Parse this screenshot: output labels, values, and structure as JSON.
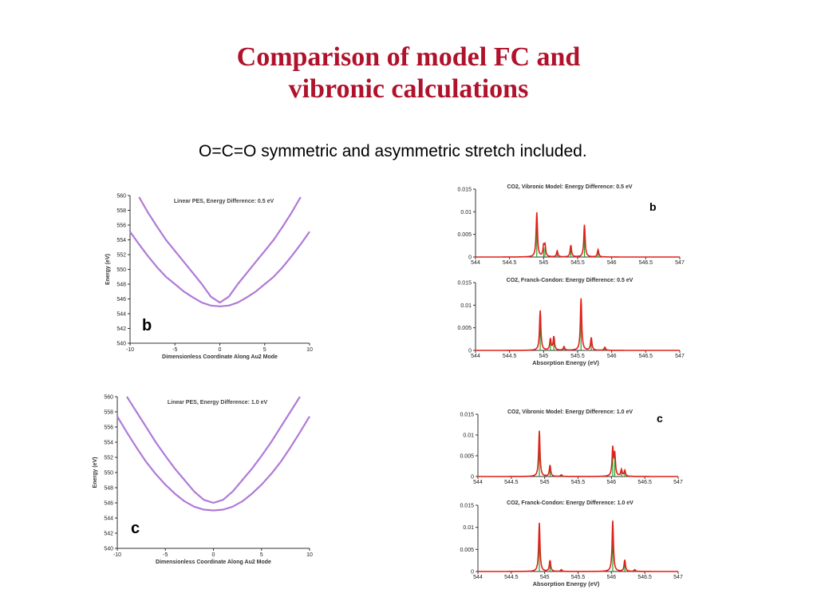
{
  "slide": {
    "title_line1": "Comparison of model FC and",
    "title_line2": "vibronic calculations",
    "subtitle": "O=C=O symmetric and asymmetric stretch included."
  },
  "colors": {
    "title": "#b0122c",
    "pes_curve": "#b07ad8",
    "spectrum_envelope": "#e0201a",
    "spectrum_sticks": "#22a022"
  },
  "chart_data": [
    {
      "id": "pes_b",
      "type": "line",
      "title": "Linear PES, Energy Difference: 0.5 eV",
      "xlabel": "Dimensionless Coordinate Along Au2 Mode",
      "ylabel": "Energy (eV)",
      "panel_label": "b",
      "xlim": [
        -10,
        10
      ],
      "ylim": [
        540,
        560
      ],
      "xticks": [
        -10,
        -5,
        0,
        5,
        10
      ],
      "yticks": [
        540,
        542,
        544,
        546,
        548,
        550,
        552,
        554,
        556,
        558,
        560
      ],
      "series": [
        {
          "x": [
            -9,
            -8,
            -7,
            -6,
            -5,
            -4,
            -3,
            -2,
            -1,
            0,
            1,
            2,
            3,
            4,
            5,
            6,
            7,
            8,
            9
          ],
          "values": [
            559.8,
            557.7,
            555.8,
            554.0,
            552.5,
            551.0,
            549.5,
            548.0,
            546.3,
            545.5,
            546.3,
            548.0,
            549.5,
            551.0,
            552.5,
            554.0,
            555.8,
            557.7,
            559.8
          ]
        },
        {
          "x": [
            -10,
            -9,
            -8,
            -7,
            -6,
            -5,
            -4,
            -3,
            -2,
            -1,
            0,
            1,
            2,
            3,
            4,
            5,
            6,
            7,
            8,
            9,
            10
          ],
          "values": [
            555.1,
            553.4,
            551.8,
            550.3,
            549.0,
            548.0,
            547.0,
            546.2,
            545.5,
            545.1,
            545.0,
            545.1,
            545.5,
            546.2,
            547.0,
            548.0,
            549.0,
            550.3,
            551.8,
            553.4,
            555.1
          ]
        }
      ]
    },
    {
      "id": "pes_c",
      "type": "line",
      "title": "Linear PES, Energy Difference: 1.0 eV",
      "xlabel": "Dimensionless Coordinate Along Au2 Mode",
      "ylabel": "Energy (eV)",
      "panel_label": "c",
      "xlim": [
        -10,
        10
      ],
      "ylim": [
        540,
        560
      ],
      "xticks": [
        -10,
        -5,
        0,
        5,
        10
      ],
      "yticks": [
        540,
        542,
        544,
        546,
        548,
        550,
        552,
        554,
        556,
        558,
        560
      ],
      "series": [
        {
          "x": [
            -9,
            -8,
            -7,
            -6,
            -5,
            -4,
            -3,
            -2,
            -1,
            0,
            1,
            2,
            3,
            4,
            5,
            6,
            7,
            8,
            9
          ],
          "values": [
            560.0,
            558.0,
            556.0,
            554.0,
            552.2,
            550.5,
            549.0,
            547.5,
            546.4,
            546.0,
            546.4,
            547.5,
            549.0,
            550.5,
            552.2,
            554.0,
            556.0,
            558.0,
            560.0
          ]
        },
        {
          "x": [
            -10,
            -9,
            -8,
            -7,
            -6,
            -5,
            -4,
            -3,
            -2,
            -1,
            0,
            1,
            2,
            3,
            4,
            5,
            6,
            7,
            8,
            9,
            10
          ],
          "values": [
            557.4,
            555.3,
            553.3,
            551.4,
            549.8,
            548.4,
            547.2,
            546.2,
            545.5,
            545.1,
            545.0,
            545.1,
            545.5,
            546.2,
            547.2,
            548.4,
            549.8,
            551.4,
            553.3,
            555.3,
            557.4
          ]
        }
      ]
    },
    {
      "id": "spec_vib_b",
      "type": "line",
      "title": "CO2, Vibronic Model: Energy Difference: 0.5 eV",
      "xlabel": "",
      "panel_label": "b",
      "xlim": [
        544,
        547
      ],
      "ylim": [
        0,
        0.015
      ],
      "xticks": [
        "544",
        "544.5",
        "545",
        "545.5",
        "546",
        "546.5",
        "547"
      ],
      "yticks": [
        "0",
        "0.005",
        "0.01",
        "0.015"
      ],
      "peaks": [
        {
          "x": 544.9,
          "y": 0.0098
        },
        {
          "x": 545.0,
          "y": 0.0022
        },
        {
          "x": 545.02,
          "y": 0.0024
        },
        {
          "x": 545.2,
          "y": 0.0013
        },
        {
          "x": 545.4,
          "y": 0.0026
        },
        {
          "x": 545.6,
          "y": 0.0071
        },
        {
          "x": 545.8,
          "y": 0.0016
        }
      ]
    },
    {
      "id": "spec_fc_b",
      "type": "line",
      "title": "CO2, Franck-Condon: Energy Difference: 0.5 eV",
      "xlabel": "Absorption Energy (eV)",
      "panel_label": "",
      "xlim": [
        544,
        547
      ],
      "ylim": [
        0,
        0.015
      ],
      "xticks": [
        "544",
        "544.5",
        "545",
        "545.5",
        "546",
        "546.5",
        "547"
      ],
      "yticks": [
        "0",
        "0.005",
        "0.01",
        "0.015"
      ],
      "peaks": [
        {
          "x": 544.95,
          "y": 0.0088
        },
        {
          "x": 545.1,
          "y": 0.0025
        },
        {
          "x": 545.15,
          "y": 0.003
        },
        {
          "x": 545.3,
          "y": 0.0008
        },
        {
          "x": 545.55,
          "y": 0.0115
        },
        {
          "x": 545.7,
          "y": 0.0028
        },
        {
          "x": 545.9,
          "y": 0.0007
        }
      ]
    },
    {
      "id": "spec_vib_c",
      "type": "line",
      "title": "CO2, Vibronic Model: Energy Difference: 1.0 eV",
      "xlabel": "",
      "panel_label": "c",
      "xlim": [
        544,
        547
      ],
      "ylim": [
        0,
        0.015
      ],
      "xticks": [
        "544",
        "544.5",
        "545",
        "545.5",
        "546",
        "546.5",
        "547"
      ],
      "yticks": [
        "0",
        "0.005",
        "0.01",
        "0.015"
      ],
      "peaks": [
        {
          "x": 544.92,
          "y": 0.011
        },
        {
          "x": 545.08,
          "y": 0.0027
        },
        {
          "x": 545.25,
          "y": 0.0004
        },
        {
          "x": 546.02,
          "y": 0.0067
        },
        {
          "x": 546.05,
          "y": 0.0052
        },
        {
          "x": 546.15,
          "y": 0.0016
        },
        {
          "x": 546.2,
          "y": 0.0014
        }
      ]
    },
    {
      "id": "spec_fc_c",
      "type": "line",
      "title": "CO2, Franck-Condon: Energy Difference: 1.0 eV",
      "xlabel": "Absorption Energy (eV)",
      "panel_label": "",
      "xlim": [
        544,
        547
      ],
      "ylim": [
        0,
        0.015
      ],
      "xticks": [
        "544",
        "544.5",
        "545",
        "545.5",
        "546",
        "546.5",
        "547"
      ],
      "yticks": [
        "0",
        "0.005",
        "0.01",
        "0.015"
      ],
      "peaks": [
        {
          "x": 544.92,
          "y": 0.011
        },
        {
          "x": 545.08,
          "y": 0.0025
        },
        {
          "x": 545.25,
          "y": 0.0004
        },
        {
          "x": 546.02,
          "y": 0.0115
        },
        {
          "x": 546.2,
          "y": 0.0026
        },
        {
          "x": 546.35,
          "y": 0.0004
        }
      ]
    }
  ]
}
